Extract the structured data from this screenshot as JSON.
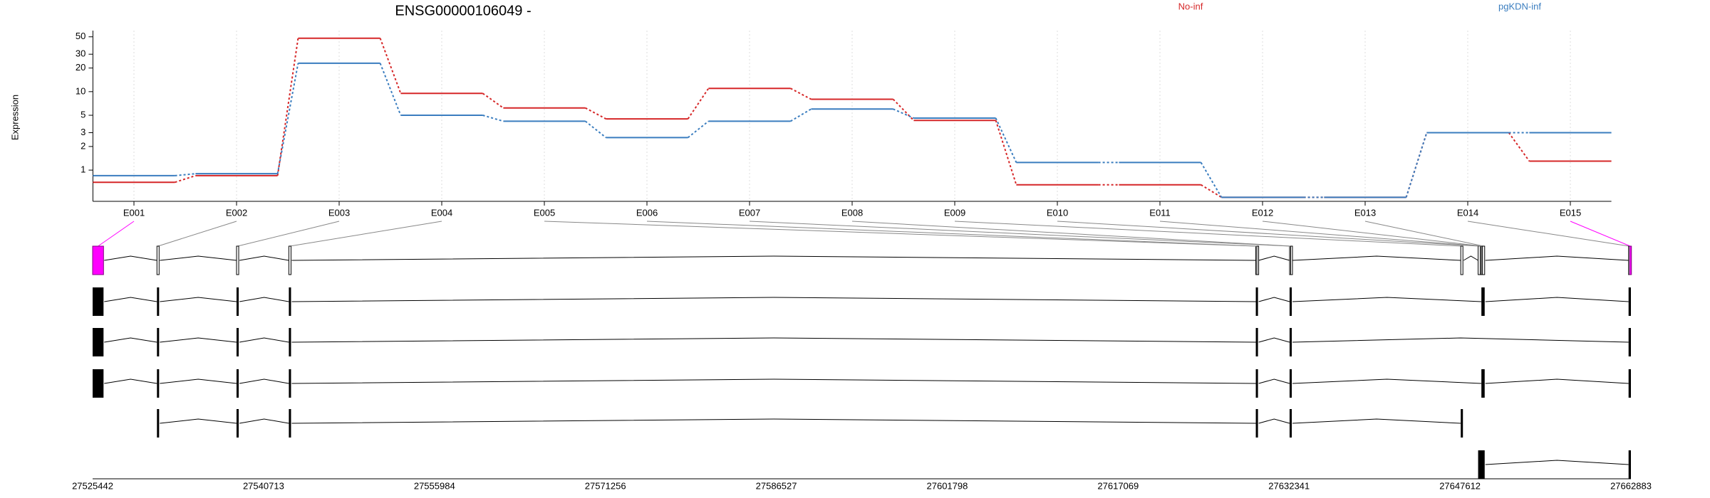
{
  "chart_data": {
    "type": "line",
    "title": "ENSG00000106049 -",
    "y_label": "Expression",
    "categories": [
      "E001",
      "E002",
      "E003",
      "E004",
      "E005",
      "E006",
      "E007",
      "E008",
      "E009",
      "E010",
      "E011",
      "E012",
      "E013",
      "E014",
      "E015"
    ],
    "series": [
      {
        "name": "No-inf",
        "color": "#d62728",
        "values": [
          0.7,
          0.85,
          48,
          9.5,
          6.2,
          4.5,
          11,
          8,
          4.3,
          0.65,
          0.65,
          0.45,
          0.45,
          3,
          1.3
        ]
      },
      {
        "name": "pgKDN-inf",
        "color": "#3a7dbf",
        "values": [
          0.85,
          0.9,
          23,
          5,
          4.2,
          2.6,
          4.2,
          6,
          4.6,
          1.25,
          1.25,
          0.45,
          0.45,
          3,
          3
        ]
      }
    ],
    "ylog": true,
    "ylim": [
      0.4,
      60
    ],
    "yticks": [
      1,
      2,
      3,
      5,
      10,
      20,
      30,
      50
    ],
    "grid": true,
    "genome_xlim": [
      27525442,
      27662883
    ],
    "genome_ticks": [
      27525442,
      27540713,
      27555984,
      27571256,
      27586527,
      27601798,
      27617069,
      27632341,
      27647612,
      27662883
    ],
    "exonic_parts": [
      [
        27525442,
        27526416
      ],
      [
        27531189,
        27531383
      ],
      [
        27538299,
        27538494
      ],
      [
        27542974,
        27543169
      ],
      [
        27629368,
        27629466
      ],
      [
        27629466,
        27629563
      ],
      [
        27632387,
        27632485
      ],
      [
        27632485,
        27632582
      ],
      [
        27647679,
        27647874
      ],
      [
        27649232,
        27649427
      ],
      [
        27649427,
        27649524
      ],
      [
        27649524,
        27649622
      ],
      [
        27649622,
        27649817
      ],
      [
        27662674,
        27662771
      ],
      [
        27662771,
        27662883
      ]
    ],
    "highlighted_parts": [
      0,
      14
    ],
    "highlight_color": "#ff00ff",
    "transcripts": [
      [
        [
          27525442,
          27526416
        ],
        [
          27531189,
          27531383
        ],
        [
          27538299,
          27538494
        ],
        [
          27542974,
          27543169
        ],
        [
          27629368,
          27629563
        ],
        [
          27632387,
          27632582
        ],
        [
          27649524,
          27649817
        ],
        [
          27662674,
          27662883
        ]
      ],
      [
        [
          27525442,
          27526416
        ],
        [
          27531189,
          27531383
        ],
        [
          27538299,
          27538494
        ],
        [
          27542974,
          27543169
        ],
        [
          27629368,
          27629563
        ],
        [
          27632387,
          27632582
        ],
        [
          27662674,
          27662883
        ]
      ],
      [
        [
          27525442,
          27526416
        ],
        [
          27531189,
          27531383
        ],
        [
          27538299,
          27538494
        ],
        [
          27542974,
          27543169
        ],
        [
          27629368,
          27629563
        ],
        [
          27632387,
          27632582
        ],
        [
          27649524,
          27649817
        ],
        [
          27662674,
          27662883
        ]
      ],
      [
        [
          27531189,
          27531383
        ],
        [
          27538299,
          27538494
        ],
        [
          27542974,
          27543169
        ],
        [
          27629368,
          27629563
        ],
        [
          27632387,
          27632582
        ],
        [
          27647679,
          27647874
        ]
      ],
      [
        [
          27649232,
          27649817
        ],
        [
          27662674,
          27662883
        ]
      ]
    ]
  }
}
